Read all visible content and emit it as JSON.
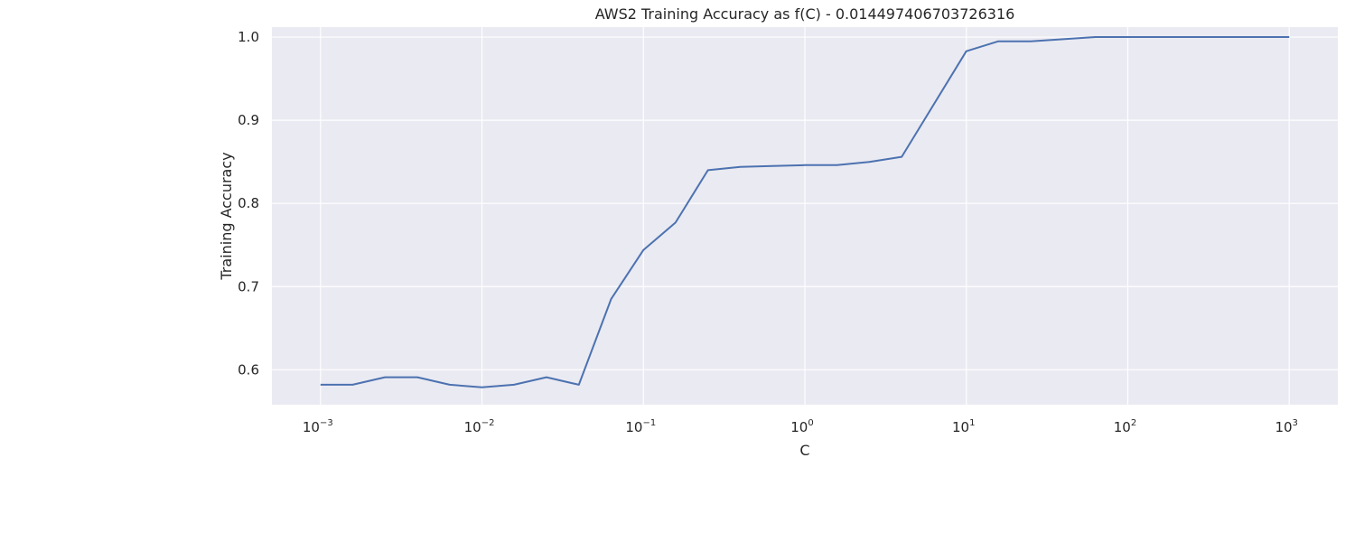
{
  "chart_data": {
    "type": "line",
    "title": "AWS2 Training Accuracy as f(C) - 0.014497406703726316",
    "xlabel": "C",
    "ylabel": "Training Accuracy",
    "xscale": "log",
    "xlim": [
      0.0005,
      2000
    ],
    "ylim": [
      0.558,
      1.012
    ],
    "grid": true,
    "background": "#eaeaf2",
    "grid_color": "#ffffff",
    "line_color": "#4c72b0",
    "xticks": [
      {
        "value": 0.001,
        "base": "10",
        "exp": "−3"
      },
      {
        "value": 0.01,
        "base": "10",
        "exp": "−2"
      },
      {
        "value": 0.1,
        "base": "10",
        "exp": "−1"
      },
      {
        "value": 1,
        "base": "10",
        "exp": "0"
      },
      {
        "value": 10,
        "base": "10",
        "exp": "1"
      },
      {
        "value": 100,
        "base": "10",
        "exp": "2"
      },
      {
        "value": 1000,
        "base": "10",
        "exp": "3"
      }
    ],
    "yticks": [
      {
        "value": 0.6,
        "label": "0.6"
      },
      {
        "value": 0.7,
        "label": "0.7"
      },
      {
        "value": 0.8,
        "label": "0.8"
      },
      {
        "value": 0.9,
        "label": "0.9"
      },
      {
        "value": 1.0,
        "label": "1.0"
      }
    ],
    "series": [
      {
        "x": [
          0.001,
          0.00158,
          0.00251,
          0.00398,
          0.00631,
          0.01,
          0.0158,
          0.0251,
          0.0398,
          0.0631,
          0.1,
          0.158,
          0.251,
          0.398,
          0.631,
          1.0,
          1.58,
          2.51,
          3.98,
          10.0,
          15.8,
          25.1,
          63.1,
          100,
          158,
          251,
          398,
          631,
          1000
        ],
        "y": [
          0.582,
          0.582,
          0.591,
          0.591,
          0.582,
          0.579,
          0.582,
          0.591,
          0.582,
          0.685,
          0.744,
          0.777,
          0.84,
          0.844,
          0.845,
          0.846,
          0.846,
          0.85,
          0.856,
          0.983,
          0.995,
          0.995,
          1.0,
          1.0,
          1.0,
          1.0,
          1.0,
          1.0,
          1.0
        ]
      }
    ]
  }
}
